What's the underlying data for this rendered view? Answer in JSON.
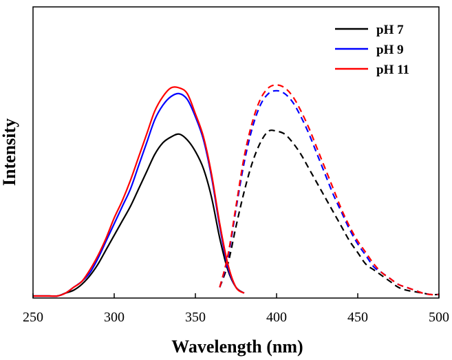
{
  "chart_data": {
    "type": "line",
    "title": "",
    "xlabel": "Wavelength (nm)",
    "ylabel": "Intensity",
    "xlim": [
      250,
      500
    ],
    "ylim": [
      0,
      1.0
    ],
    "xticks": [
      250,
      300,
      350,
      400,
      450,
      500
    ],
    "x_tick_labels": [
      "250",
      "300",
      "350",
      "400",
      "450",
      "500"
    ],
    "y_tick_labels_shown": false,
    "grid": false,
    "legend_position": "top-right",
    "series": [
      {
        "name": "pH 7",
        "color": "#000000",
        "excitation": {
          "x": [
            250,
            255,
            260,
            265,
            270,
            275,
            280,
            285,
            290,
            295,
            300,
            305,
            310,
            315,
            320,
            325,
            330,
            335,
            340,
            345,
            350,
            355,
            360,
            365,
            370,
            375,
            380
          ],
          "y": [
            0.0,
            0.0,
            0.0,
            0.0,
            0.01,
            0.02,
            0.04,
            0.07,
            0.11,
            0.16,
            0.21,
            0.26,
            0.31,
            0.37,
            0.43,
            0.49,
            0.53,
            0.55,
            0.56,
            0.54,
            0.5,
            0.44,
            0.34,
            0.2,
            0.09,
            0.03,
            0.01
          ]
        },
        "emission": {
          "x": [
            365,
            370,
            375,
            380,
            385,
            390,
            395,
            400,
            405,
            410,
            415,
            420,
            425,
            430,
            435,
            440,
            445,
            450,
            455,
            460,
            465,
            470,
            475,
            480,
            485,
            490,
            495,
            500
          ],
          "y": [
            0.03,
            0.11,
            0.24,
            0.36,
            0.46,
            0.53,
            0.57,
            0.57,
            0.56,
            0.53,
            0.49,
            0.44,
            0.39,
            0.34,
            0.29,
            0.24,
            0.19,
            0.15,
            0.11,
            0.09,
            0.07,
            0.05,
            0.03,
            0.02,
            0.015,
            0.01,
            0.005,
            0.005
          ]
        }
      },
      {
        "name": "pH 9",
        "color": "#0000ff",
        "excitation": {
          "x": [
            250,
            255,
            260,
            265,
            270,
            275,
            280,
            285,
            290,
            295,
            300,
            305,
            310,
            315,
            320,
            325,
            330,
            335,
            340,
            345,
            350,
            355,
            360,
            365,
            370,
            375,
            380
          ],
          "y": [
            0.0,
            0.0,
            0.0,
            0.0,
            0.01,
            0.03,
            0.05,
            0.08,
            0.13,
            0.19,
            0.25,
            0.31,
            0.37,
            0.45,
            0.53,
            0.61,
            0.66,
            0.69,
            0.7,
            0.68,
            0.62,
            0.54,
            0.41,
            0.24,
            0.1,
            0.03,
            0.01
          ]
        },
        "emission": {
          "x": [
            365,
            370,
            375,
            380,
            385,
            390,
            395,
            400,
            405,
            410,
            415,
            420,
            425,
            430,
            435,
            440,
            445,
            450,
            455,
            460,
            465,
            470,
            475,
            480,
            485,
            490,
            495,
            500
          ],
          "y": [
            0.03,
            0.13,
            0.3,
            0.46,
            0.58,
            0.66,
            0.7,
            0.71,
            0.7,
            0.67,
            0.62,
            0.56,
            0.49,
            0.42,
            0.35,
            0.29,
            0.23,
            0.18,
            0.14,
            0.1,
            0.08,
            0.06,
            0.04,
            0.03,
            0.02,
            0.01,
            0.005,
            0.005
          ]
        }
      },
      {
        "name": "pH 11",
        "color": "#ff0000",
        "excitation": {
          "x": [
            250,
            255,
            260,
            265,
            270,
            275,
            280,
            285,
            290,
            295,
            300,
            305,
            310,
            315,
            320,
            325,
            330,
            335,
            340,
            345,
            350,
            355,
            360,
            365,
            370,
            375,
            380
          ],
          "y": [
            0.0,
            0.0,
            0.0,
            0.0,
            0.01,
            0.03,
            0.05,
            0.09,
            0.14,
            0.2,
            0.27,
            0.33,
            0.4,
            0.48,
            0.56,
            0.64,
            0.69,
            0.72,
            0.72,
            0.7,
            0.63,
            0.55,
            0.42,
            0.25,
            0.11,
            0.03,
            0.01
          ]
        },
        "emission": {
          "x": [
            365,
            370,
            375,
            380,
            385,
            390,
            395,
            400,
            405,
            410,
            415,
            420,
            425,
            430,
            435,
            440,
            445,
            450,
            455,
            460,
            465,
            470,
            475,
            480,
            485,
            490,
            495,
            500
          ],
          "y": [
            0.03,
            0.14,
            0.31,
            0.48,
            0.6,
            0.68,
            0.72,
            0.73,
            0.72,
            0.69,
            0.64,
            0.58,
            0.51,
            0.44,
            0.37,
            0.3,
            0.24,
            0.19,
            0.15,
            0.11,
            0.08,
            0.06,
            0.04,
            0.03,
            0.02,
            0.01,
            0.005,
            0.005
          ]
        }
      }
    ]
  }
}
